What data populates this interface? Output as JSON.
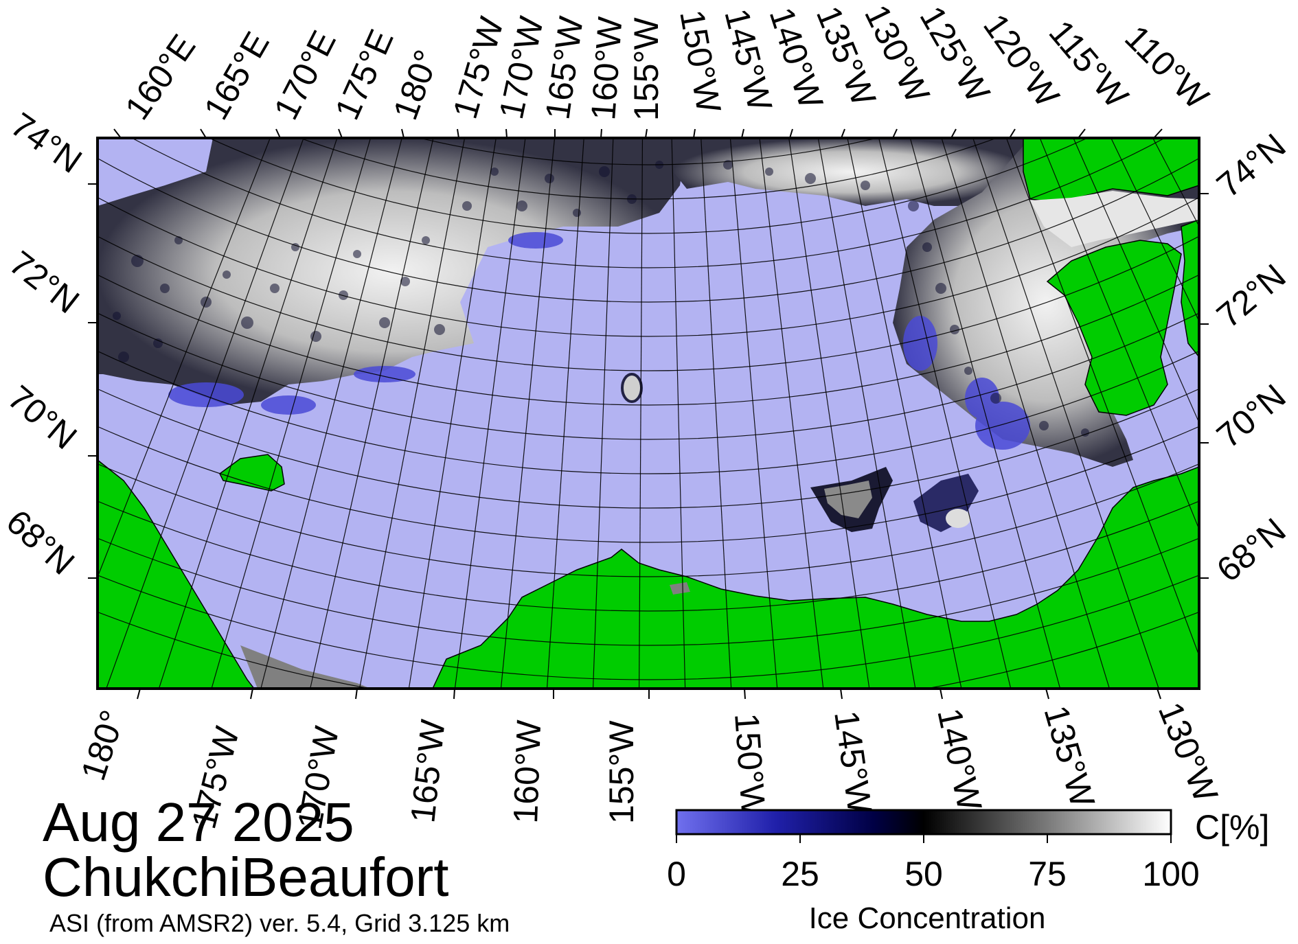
{
  "map": {
    "date": "Aug 27 2025",
    "region": "ChukchiBeaufort",
    "source": "ASI (from AMSR2) ver. 5.4,  Grid 3.125 km",
    "top_lon_labels": [
      "160°E",
      "165°E",
      "170°E",
      "175°E",
      "180°",
      "175°W",
      "170°W",
      "165°W",
      "160°W",
      "155°W",
      "150°W",
      "145°W",
      "140°W",
      "135°W",
      "130°W",
      "125°W",
      "120°W",
      "115°W",
      "110°W"
    ],
    "bottom_lon_labels": [
      "180°",
      "175°W",
      "170°W",
      "165°W",
      "160°W",
      "155°W",
      "150°W",
      "145°W",
      "140°W",
      "135°W",
      "130°W"
    ],
    "left_lat_labels": [
      "74°N",
      "72°N",
      "70°N",
      "68°N"
    ],
    "right_lat_labels": [
      "74°N",
      "72°N",
      "70°N",
      "68°N"
    ],
    "colors": {
      "ocean": "#b3b3f2",
      "land": "#00cc00",
      "ice_low": "#6b6be6",
      "ice_mid": "#000066",
      "ice_high": "#ffffff",
      "missing": "#808080"
    }
  },
  "colorbar": {
    "title": "Ice Concentration",
    "unit": "C[%]",
    "ticks": [
      "0",
      "25",
      "50",
      "75",
      "100"
    ]
  }
}
